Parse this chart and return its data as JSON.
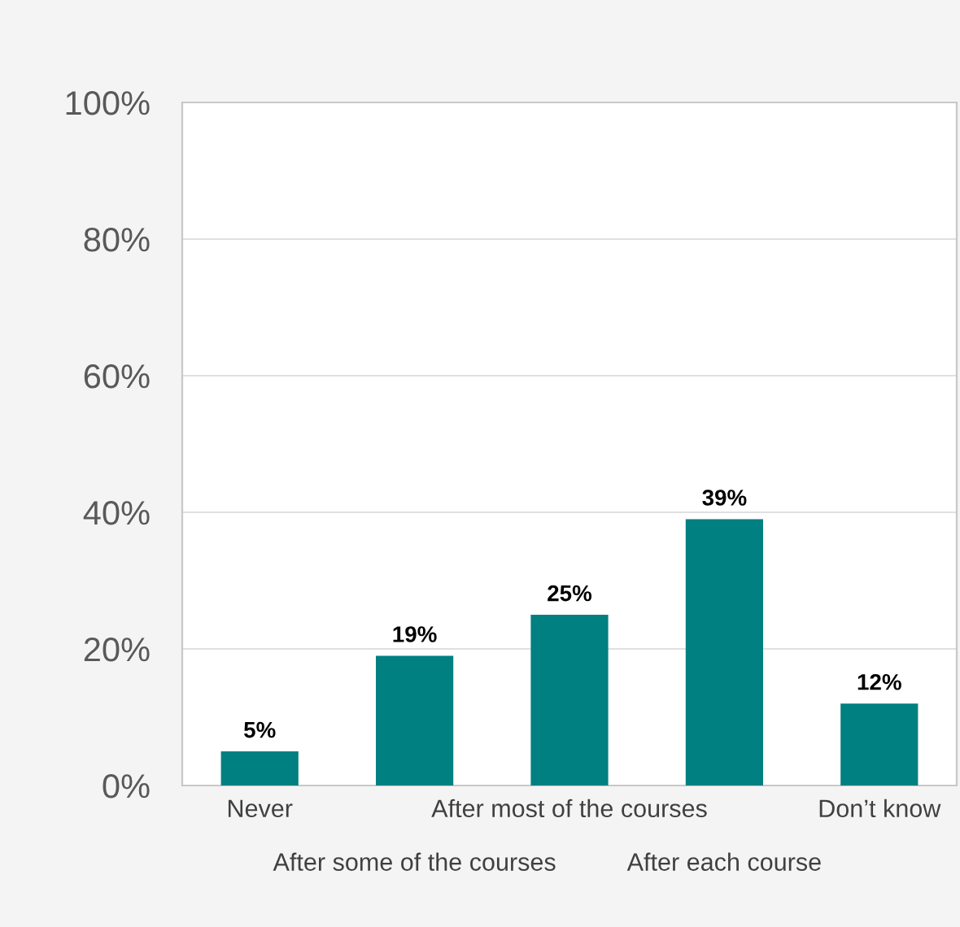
{
  "chart_data": {
    "type": "bar",
    "categories": [
      "Never",
      "After some of the courses",
      "After most of the courses",
      "After each course",
      "Don’t know"
    ],
    "values": [
      5,
      19,
      25,
      39,
      12
    ],
    "value_labels": [
      "5%",
      "19%",
      "25%",
      "39%",
      "12%"
    ],
    "color": "#008080",
    "ylim": [
      0,
      100
    ],
    "yticks": [
      {
        "value": 0,
        "label": "0%"
      },
      {
        "value": 20,
        "label": "20%"
      },
      {
        "value": 40,
        "label": "40%"
      },
      {
        "value": 60,
        "label": "60%"
      },
      {
        "value": 80,
        "label": "80%"
      },
      {
        "value": 100,
        "label": "100%"
      }
    ],
    "grid": "y",
    "legend": false
  }
}
